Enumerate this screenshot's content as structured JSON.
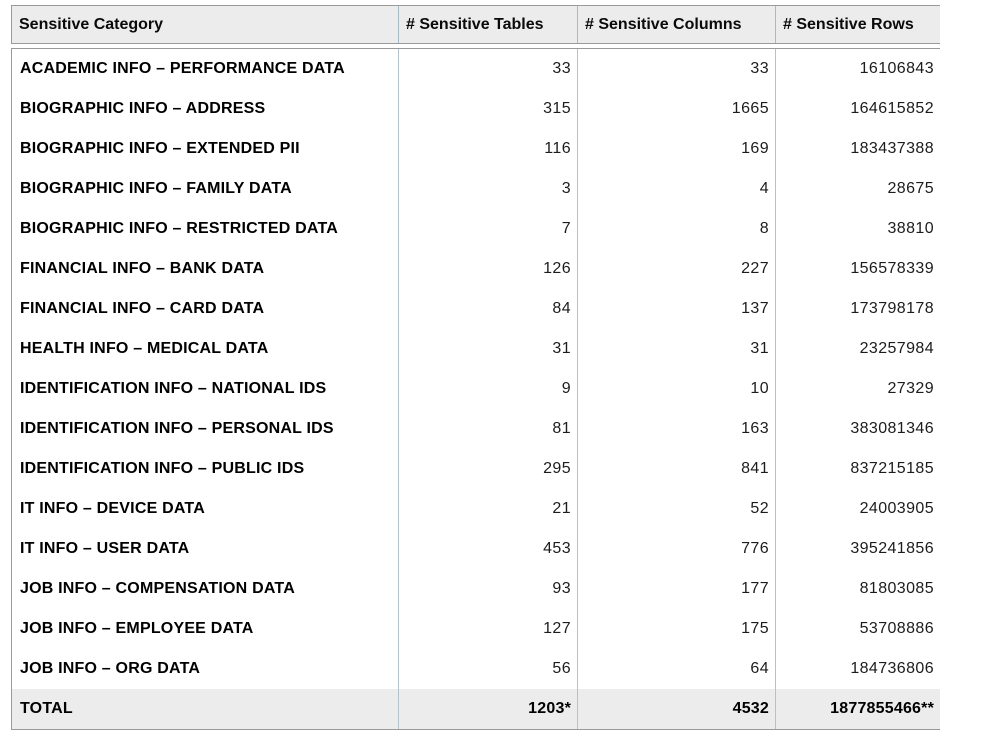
{
  "chart_data": {
    "type": "table",
    "columns": [
      "Sensitive Category",
      "# Sensitive Tables",
      "# Sensitive Columns",
      "# Sensitive Rows"
    ],
    "rows": [
      [
        "ACADEMIC INFO – PERFORMANCE DATA",
        "33",
        "33",
        "16106843"
      ],
      [
        "BIOGRAPHIC INFO – ADDRESS",
        "315",
        "1665",
        "164615852"
      ],
      [
        "BIOGRAPHIC INFO – EXTENDED PII",
        "116",
        "169",
        "183437388"
      ],
      [
        "BIOGRAPHIC INFO – FAMILY DATA",
        "3",
        "4",
        "28675"
      ],
      [
        "BIOGRAPHIC INFO – RESTRICTED DATA",
        "7",
        "8",
        "38810"
      ],
      [
        "FINANCIAL INFO – BANK DATA",
        "126",
        "227",
        "156578339"
      ],
      [
        "FINANCIAL INFO – CARD DATA",
        "84",
        "137",
        "173798178"
      ],
      [
        "HEALTH INFO – MEDICAL DATA",
        "31",
        "31",
        "23257984"
      ],
      [
        "IDENTIFICATION INFO – NATIONAL IDS",
        "9",
        "10",
        "27329"
      ],
      [
        "IDENTIFICATION INFO – PERSONAL IDS",
        "81",
        "163",
        "383081346"
      ],
      [
        "IDENTIFICATION INFO – PUBLIC IDS",
        "295",
        "841",
        "837215185"
      ],
      [
        "IT INFO – DEVICE DATA",
        "21",
        "52",
        "24003905"
      ],
      [
        "IT INFO – USER DATA",
        "453",
        "776",
        "395241856"
      ],
      [
        "JOB INFO – COMPENSATION DATA",
        "93",
        "177",
        "81803085"
      ],
      [
        "JOB INFO – EMPLOYEE DATA",
        "127",
        "175",
        "53708886"
      ],
      [
        "JOB INFO – ORG DATA",
        "56",
        "64",
        "184736806"
      ]
    ],
    "total_row": [
      "TOTAL",
      "1203*",
      "4532",
      "1877855466**"
    ],
    "layout": {
      "grid": "off",
      "row_separators": "none",
      "column_separators": "on"
    }
  },
  "colors": {
    "header_bg": "#ececec",
    "total_row_bg": "#ececec",
    "outer_border": "#9a9a9a",
    "column_separator": "#b2c3ce",
    "text": "#000000"
  }
}
